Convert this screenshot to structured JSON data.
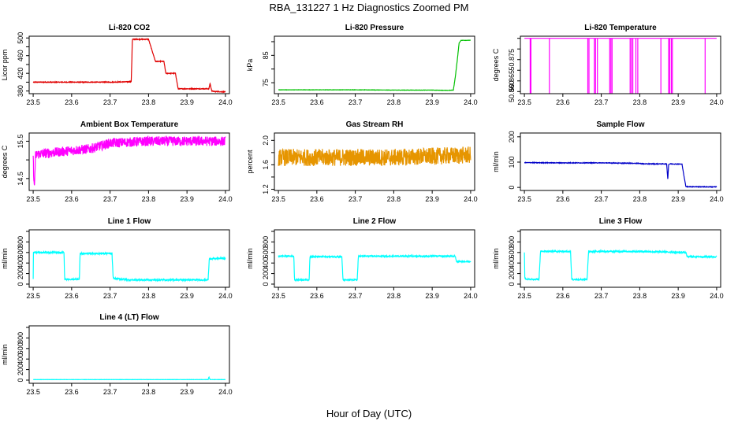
{
  "page": {
    "title": "RBA_131227  1 Hz Diagnostics Zoomed PM",
    "xlabel": "Hour of Day (UTC)"
  },
  "chart_data": [
    {
      "type": "line",
      "title": "Li-820 CO2",
      "ylabel": "Licor ppm",
      "color": "#e00000",
      "xlim": [
        23.5,
        24.0
      ],
      "xticks": [
        "23.5",
        "23.6",
        "23.7",
        "23.8",
        "23.9",
        "24.0"
      ],
      "ylim": [
        374,
        504
      ],
      "yticks": [
        "380",
        "400",
        "420",
        "440",
        "460",
        "480",
        "500"
      ],
      "ytick_labels": [
        "380",
        "",
        "420",
        "",
        "460",
        "",
        "500"
      ],
      "x": [
        23.5,
        23.55,
        23.6,
        23.65,
        23.7,
        23.755,
        23.758,
        23.8,
        23.818,
        23.84,
        23.845,
        23.87,
        23.877,
        23.9,
        23.94,
        23.957,
        23.96,
        23.963,
        23.965,
        23.97,
        24.0
      ],
      "y": [
        400,
        400,
        400,
        400,
        400,
        401,
        497,
        497,
        447,
        447,
        420,
        420,
        385,
        385,
        385,
        385,
        397,
        385,
        380,
        379,
        378
      ],
      "noise": 0.8
    },
    {
      "type": "line",
      "title": "Li-820 Pressure",
      "ylabel": "kPa",
      "color": "#00c000",
      "xlim": [
        23.5,
        24.0
      ],
      "xticks": [
        "23.5",
        "23.6",
        "23.7",
        "23.8",
        "23.9",
        "24.0"
      ],
      "ylim": [
        71,
        92
      ],
      "yticks": [
        "75",
        "80",
        "85",
        "90"
      ],
      "ytick_labels": [
        "75",
        "",
        "85",
        ""
      ],
      "x": [
        23.5,
        23.6,
        23.7,
        23.8,
        23.9,
        23.94,
        23.955,
        23.96,
        23.965,
        23.97,
        23.975,
        24.0
      ],
      "y": [
        72.4,
        72.4,
        72.4,
        72.3,
        72.3,
        72.2,
        72.3,
        77.0,
        83.0,
        89.5,
        90.5,
        90.5
      ],
      "noise": 0.05
    },
    {
      "type": "line",
      "title": "Li-820 Temperature",
      "ylabel": "degrees C",
      "color": "#ff00ff",
      "xlim": [
        23.5,
        24.0
      ],
      "xticks": [
        "23.5",
        "23.6",
        "23.7",
        "23.8",
        "23.9",
        "24.0"
      ],
      "ylim": [
        50.859,
        50.886
      ],
      "yticks": [
        "50.860",
        "50.865",
        "50.870",
        "50.875",
        "50.880",
        "50.885"
      ],
      "ytick_labels": [
        "50.860",
        "50.865",
        "",
        "50.875",
        "",
        ""
      ],
      "baseline": 50.885,
      "dip_low": 50.859,
      "dips": [
        23.515,
        23.517,
        23.565,
        23.665,
        23.668,
        23.682,
        23.685,
        23.69,
        23.722,
        23.725,
        23.728,
        23.775,
        23.778,
        23.782,
        23.79,
        23.795,
        23.855,
        23.875,
        23.878,
        23.882,
        23.885,
        23.885,
        23.97
      ]
    },
    {
      "type": "line",
      "title": "Ambient Box Temperature",
      "ylabel": "degrees C",
      "color": "#ff00ff",
      "xlim": [
        23.5,
        24.0
      ],
      "xticks": [
        "23.5",
        "23.6",
        "23.7",
        "23.8",
        "23.9",
        "24.0"
      ],
      "ylim": [
        14.18,
        15.72
      ],
      "yticks": [
        "14.5",
        "15.0",
        "15.5"
      ],
      "ytick_labels": [
        "14.5",
        "",
        "15.5"
      ],
      "x": [
        23.5,
        23.503,
        23.506,
        23.51,
        23.6,
        23.65,
        23.7,
        23.8,
        23.9,
        24.0
      ],
      "y": [
        15.0,
        14.2,
        15.1,
        15.15,
        15.25,
        15.3,
        15.45,
        15.5,
        15.5,
        15.5
      ],
      "noise": 0.13
    },
    {
      "type": "line",
      "title": "Gas Stream RH",
      "ylabel": "percent",
      "color": "#e69500",
      "xlim": [
        23.5,
        24.0
      ],
      "xticks": [
        "23.5",
        "23.6",
        "23.7",
        "23.8",
        "23.9",
        "24.0"
      ],
      "ylim": [
        1.18,
        2.12
      ],
      "yticks": [
        "1.2",
        "1.4",
        "1.6",
        "1.8",
        "2.0"
      ],
      "ytick_labels": [
        "1.2",
        "",
        "1.6",
        "",
        "2.0"
      ],
      "x": [
        23.5,
        23.6,
        23.7,
        23.8,
        23.9,
        24.0
      ],
      "y": [
        1.72,
        1.72,
        1.72,
        1.72,
        1.74,
        1.76
      ],
      "noise": 0.14
    },
    {
      "type": "line",
      "title": "Sample Flow",
      "ylabel": "ml/min",
      "color": "#0000c8",
      "xlim": [
        23.5,
        24.0
      ],
      "xticks": [
        "23.5",
        "23.6",
        "23.7",
        "23.8",
        "23.9",
        "24.0"
      ],
      "ylim": [
        -12,
        215
      ],
      "yticks": [
        "0",
        "100",
        "200"
      ],
      "ytick_labels": [
        "0",
        "100",
        "200"
      ],
      "x": [
        23.5,
        23.6,
        23.7,
        23.8,
        23.81,
        23.87,
        23.873,
        23.875,
        23.878,
        23.91,
        23.915,
        23.92,
        24.0
      ],
      "y": [
        98,
        97,
        97,
        95,
        93,
        93,
        30,
        90,
        93,
        92,
        45,
        3,
        2
      ],
      "noise": 1.2
    },
    {
      "type": "line",
      "title": "Line 1 Flow",
      "ylabel": "ml/min",
      "color": "#00ffff",
      "xlim": [
        23.5,
        24.0
      ],
      "xticks": [
        "23.5",
        "23.6",
        "23.7",
        "23.8",
        "23.9",
        "24.0"
      ],
      "ylim": [
        -60,
        1030
      ],
      "yticks": [
        "0",
        "200",
        "400",
        "600",
        "800",
        "1000"
      ],
      "ytick_labels": [
        "0",
        "200",
        "400",
        "600",
        "800",
        ""
      ],
      "x": [
        23.5,
        23.5,
        23.58,
        23.582,
        23.62,
        23.622,
        23.705,
        23.708,
        23.75,
        23.8,
        23.9,
        23.955,
        23.958,
        24.0
      ],
      "y": [
        100,
        600,
        600,
        90,
        90,
        580,
        580,
        110,
        80,
        80,
        80,
        80,
        480,
        490
      ],
      "noise": 14
    },
    {
      "type": "line",
      "title": "Line 2 Flow",
      "ylabel": "ml/min",
      "color": "#00ffff",
      "xlim": [
        23.5,
        24.0
      ],
      "xticks": [
        "23.5",
        "23.6",
        "23.7",
        "23.8",
        "23.9",
        "24.0"
      ],
      "ylim": [
        -60,
        1030
      ],
      "yticks": [
        "0",
        "200",
        "400",
        "600",
        "800",
        "1000"
      ],
      "ytick_labels": [
        "0",
        "200",
        "400",
        "600",
        "800",
        ""
      ],
      "x": [
        23.5,
        23.54,
        23.542,
        23.58,
        23.582,
        23.665,
        23.668,
        23.705,
        23.708,
        23.8,
        23.9,
        23.96,
        23.963,
        24.0
      ],
      "y": [
        530,
        530,
        80,
        80,
        520,
        520,
        80,
        80,
        530,
        530,
        530,
        530,
        430,
        430
      ],
      "noise": 12
    },
    {
      "type": "line",
      "title": "Line 3 Flow",
      "ylabel": "ml/min",
      "color": "#00ffff",
      "xlim": [
        23.5,
        24.0
      ],
      "xticks": [
        "23.5",
        "23.6",
        "23.7",
        "23.8",
        "23.9",
        "24.0"
      ],
      "ylim": [
        -60,
        1030
      ],
      "yticks": [
        "0",
        "200",
        "400",
        "600",
        "800",
        "1000"
      ],
      "ytick_labels": [
        "0",
        "200",
        "400",
        "600",
        "800",
        ""
      ],
      "x": [
        23.5,
        23.501,
        23.505,
        23.538,
        23.542,
        23.62,
        23.623,
        23.663,
        23.667,
        23.8,
        23.92,
        23.923,
        24.0
      ],
      "y": [
        600,
        120,
        90,
        90,
        620,
        620,
        90,
        90,
        620,
        620,
        600,
        520,
        520
      ],
      "noise": 14
    },
    {
      "type": "line",
      "title": "Line 4 (LT) Flow",
      "ylabel": "ml/min",
      "color": "#00ffff",
      "xlim": [
        23.5,
        24.0
      ],
      "xticks": [
        "23.5",
        "23.6",
        "23.7",
        "23.8",
        "23.9",
        "24.0"
      ],
      "ylim": [
        -60,
        1030
      ],
      "yticks": [
        "0",
        "200",
        "400",
        "600",
        "800",
        "1000"
      ],
      "ytick_labels": [
        "0",
        "200",
        "400",
        "600",
        "800",
        ""
      ],
      "x": [
        23.5,
        23.6,
        23.7,
        23.8,
        23.9,
        23.955,
        23.957,
        23.96,
        24.0
      ],
      "y": [
        10,
        10,
        10,
        10,
        10,
        10,
        60,
        10,
        10
      ],
      "noise": 2
    }
  ]
}
